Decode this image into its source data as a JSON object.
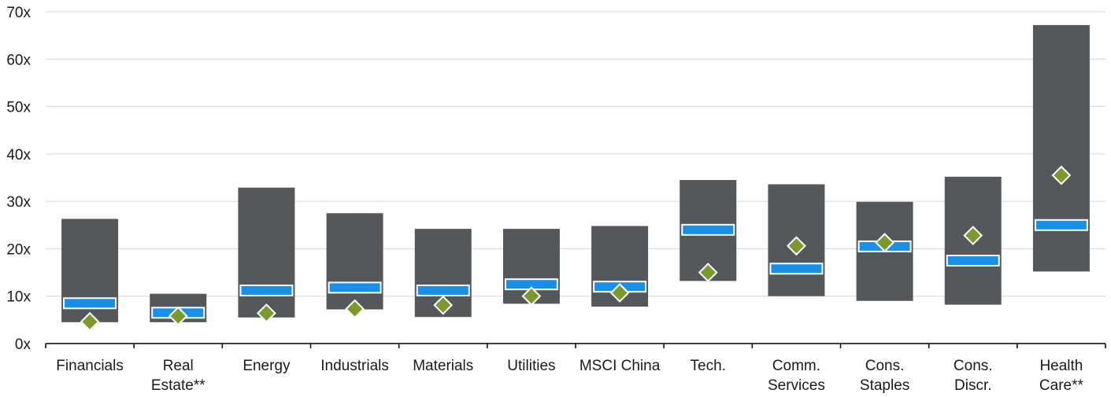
{
  "chart_data": {
    "type": "range-bar",
    "title": "",
    "xlabel": "",
    "ylabel": "",
    "ylim": [
      0,
      70
    ],
    "yticks": [
      "0x",
      "10x",
      "20x",
      "30x",
      "40x",
      "50x",
      "60x",
      "70x"
    ],
    "grid": true,
    "categories": [
      [
        "Financials"
      ],
      [
        "Real",
        "Estate**"
      ],
      [
        "Energy"
      ],
      [
        "Industrials"
      ],
      [
        "Materials"
      ],
      [
        "Utilities"
      ],
      [
        "MSCI China"
      ],
      [
        "Tech."
      ],
      [
        "Comm.",
        "Services"
      ],
      [
        "Cons.",
        "Staples"
      ],
      [
        "Cons.",
        "Discr."
      ],
      [
        "Health",
        "Care**"
      ]
    ],
    "range_low": [
      4.5,
      4.5,
      5.5,
      7.2,
      5.6,
      8.4,
      7.8,
      13.2,
      10.0,
      9.0,
      8.2,
      15.2
    ],
    "range_high": [
      26.3,
      10.5,
      32.9,
      27.5,
      24.2,
      24.2,
      24.8,
      34.5,
      33.6,
      29.9,
      35.2,
      67.2
    ],
    "blue_marker": [
      8.5,
      6.5,
      11.2,
      11.8,
      11.2,
      12.5,
      12.0,
      24.0,
      15.8,
      20.5,
      17.5,
      25.0
    ],
    "green_marker": [
      4.6,
      5.8,
      6.4,
      7.3,
      8.1,
      10.0,
      10.7,
      15.0,
      20.6,
      21.3,
      22.8,
      35.5
    ],
    "colors": {
      "range": "#55585b",
      "blue_marker": "#1a8fe8",
      "blue_marker_border": "#ffffff",
      "green_marker": "#7a9a2e",
      "green_marker_border": "#ffffff",
      "grid": "#d6d6d6",
      "axis": "#000000"
    }
  }
}
